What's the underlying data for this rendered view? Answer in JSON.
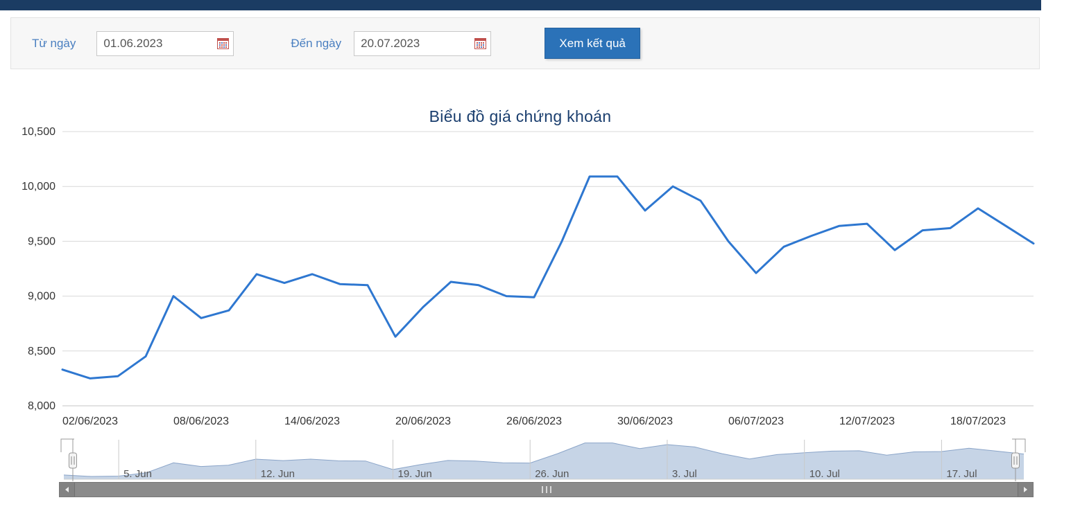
{
  "filter": {
    "from_label": "Từ ngày",
    "from_value": "01.06.2023",
    "to_label": "Đến ngày",
    "to_value": "20.07.2023",
    "submit_label": "Xem kết quả"
  },
  "chart_data": {
    "type": "line",
    "title": "Biểu đồ giá chứng khoán",
    "x_dates": [
      "01/06/2023",
      "02/06/2023",
      "05/06/2023",
      "06/06/2023",
      "07/06/2023",
      "08/06/2023",
      "09/06/2023",
      "12/06/2023",
      "13/06/2023",
      "14/06/2023",
      "15/06/2023",
      "16/06/2023",
      "19/06/2023",
      "20/06/2023",
      "21/06/2023",
      "22/06/2023",
      "23/06/2023",
      "26/06/2023",
      "27/06/2023",
      "28/06/2023",
      "29/06/2023",
      "30/06/2023",
      "03/07/2023",
      "04/07/2023",
      "05/07/2023",
      "06/07/2023",
      "07/07/2023",
      "10/07/2023",
      "11/07/2023",
      "12/07/2023",
      "13/07/2023",
      "14/07/2023",
      "17/07/2023",
      "18/07/2023",
      "19/07/2023",
      "20/07/2023"
    ],
    "series": [
      {
        "color": "#2e77d0",
        "values": [
          8330,
          8250,
          8270,
          8450,
          9000,
          8800,
          8870,
          9200,
          9120,
          9200,
          9110,
          9100,
          8630,
          8900,
          9130,
          9100,
          9000,
          8990,
          9500,
          10090,
          10090,
          9780,
          10000,
          9870,
          9500,
          9210,
          9450,
          9550,
          9640,
          9660,
          9420,
          9600,
          9620,
          9800,
          9640,
          9480
        ]
      }
    ],
    "x_tick_labels": [
      "02/06/2023",
      "08/06/2023",
      "14/06/2023",
      "20/06/2023",
      "26/06/2023",
      "30/06/2023",
      "06/07/2023",
      "12/07/2023",
      "18/07/2023"
    ],
    "x_tick_indices": [
      1,
      5,
      9,
      13,
      17,
      21,
      25,
      29,
      33
    ],
    "y_ticks": [
      8000,
      8500,
      9000,
      9500,
      10000,
      10500
    ],
    "y_tick_labels": [
      "8,000",
      "8,500",
      "9,000",
      "9,500",
      "10,000",
      "10,500"
    ],
    "ylim": [
      8000,
      10500
    ],
    "grid": true,
    "legend": "none",
    "navigator": {
      "labels": [
        "5. Jun",
        "12. Jun",
        "19. Jun",
        "26. Jun",
        "3. Jul",
        "10. Jul",
        "17. Jul"
      ],
      "label_indices": [
        2,
        7,
        12,
        17,
        22,
        27,
        32
      ]
    }
  },
  "colors": {
    "topbar": "#1b3c63",
    "button": "#2b72b8",
    "label_blue": "#4a7fc0",
    "title_navy": "#1a3e6e",
    "navigator_fill": "#bccde2"
  }
}
